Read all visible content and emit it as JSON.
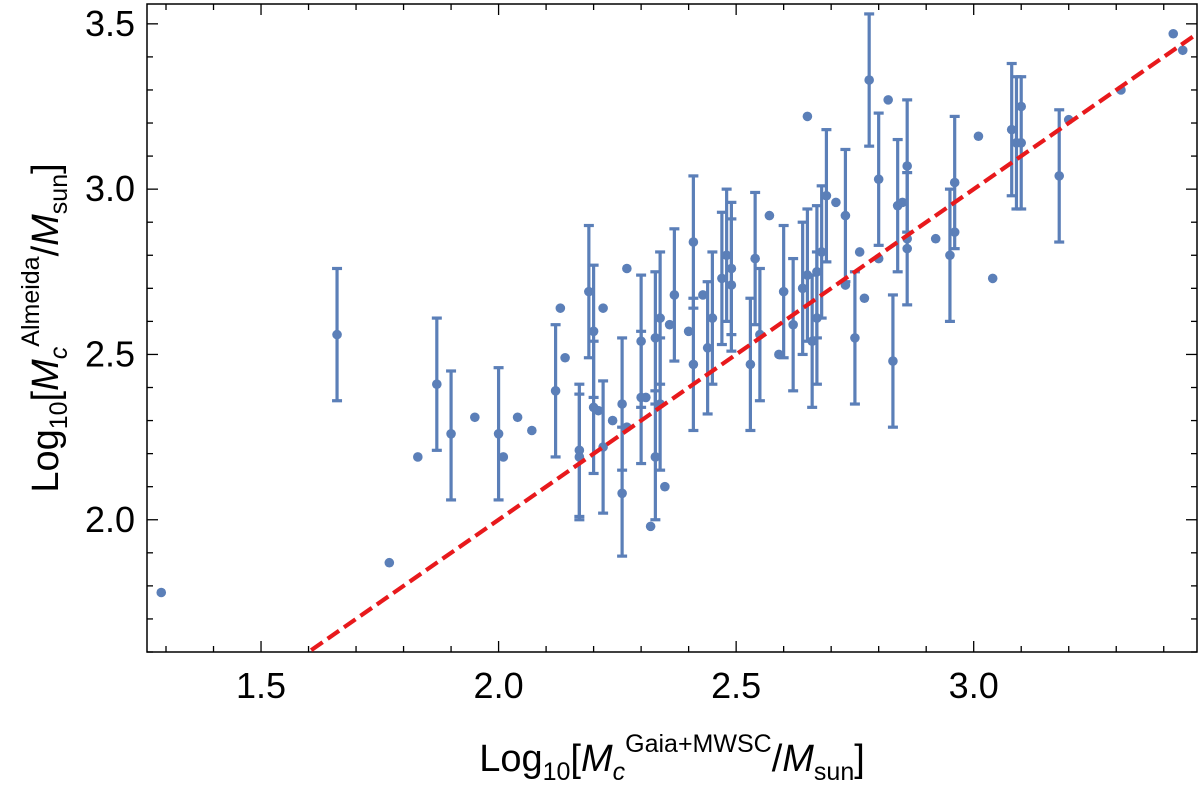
{
  "chart_data": {
    "type": "scatter",
    "title": "",
    "xlabel": {
      "prefix": "Log",
      "base": "10",
      "open": "[",
      "m1": "M",
      "m1_sub": "c",
      "m1_sup": "Gaia+MWSC",
      "slash": "/",
      "m2": "M",
      "m2_sub": "sun",
      "close": "]"
    },
    "ylabel": {
      "prefix": "Log",
      "base": "10",
      "open": "[",
      "m1": "M",
      "m1_sub": "c",
      "m1_sup": "Almeida",
      "slash": "/",
      "m2": "M",
      "m2_sub": "sun",
      "close": "]"
    },
    "xlim": [
      1.26,
      3.47
    ],
    "ylim": [
      1.6,
      3.56
    ],
    "x_ticks": [
      "1.5",
      "2.0",
      "2.5",
      "3.0"
    ],
    "y_ticks": [
      "2.0",
      "2.5",
      "3.0",
      "3.5"
    ],
    "x_tick_values": [
      1.5,
      2.0,
      2.5,
      3.0
    ],
    "y_tick_values": [
      2.0,
      2.5,
      3.0,
      3.5
    ],
    "x_minor_step": 0.1,
    "y_minor_step": 0.1,
    "grid": false,
    "point_color": "#5b7fb8",
    "line_color": "#e8191c",
    "reference_line": {
      "slope": 1,
      "intercept": 0,
      "style": "dashed"
    },
    "points": [
      {
        "x": 1.29,
        "y": 1.78
      },
      {
        "x": 1.66,
        "y": 2.56,
        "lo": 2.36,
        "hi": 2.76
      },
      {
        "x": 1.77,
        "y": 1.87
      },
      {
        "x": 1.83,
        "y": 2.19
      },
      {
        "x": 1.87,
        "y": 2.41,
        "lo": 2.21,
        "hi": 2.61
      },
      {
        "x": 1.9,
        "y": 2.26,
        "lo": 2.06,
        "hi": 2.45
      },
      {
        "x": 1.95,
        "y": 2.31
      },
      {
        "x": 2.0,
        "y": 2.26,
        "lo": 2.06,
        "hi": 2.46
      },
      {
        "x": 2.01,
        "y": 2.19
      },
      {
        "x": 2.04,
        "y": 2.31
      },
      {
        "x": 2.07,
        "y": 2.27
      },
      {
        "x": 2.12,
        "y": 2.39,
        "lo": 2.19,
        "hi": 2.59
      },
      {
        "x": 2.13,
        "y": 2.64
      },
      {
        "x": 2.14,
        "y": 2.49
      },
      {
        "x": 2.17,
        "y": 2.21,
        "lo": 2.01,
        "hi": 2.41
      },
      {
        "x": 2.17,
        "y": 2.19,
        "lo": 2.0,
        "hi": 2.38
      },
      {
        "x": 2.19,
        "y": 2.69,
        "lo": 2.49,
        "hi": 2.89
      },
      {
        "x": 2.2,
        "y": 2.57,
        "lo": 2.37,
        "hi": 2.77
      },
      {
        "x": 2.2,
        "y": 2.34,
        "lo": 2.14,
        "hi": 2.54
      },
      {
        "x": 2.21,
        "y": 2.33
      },
      {
        "x": 2.22,
        "y": 2.64
      },
      {
        "x": 2.22,
        "y": 2.22,
        "lo": 2.02,
        "hi": 2.42
      },
      {
        "x": 2.24,
        "y": 2.3
      },
      {
        "x": 2.26,
        "y": 2.08,
        "lo": 1.89,
        "hi": 2.28
      },
      {
        "x": 2.26,
        "y": 2.35,
        "lo": 2.15,
        "hi": 2.55
      },
      {
        "x": 2.27,
        "y": 2.76
      },
      {
        "x": 2.27,
        "y": 2.28
      },
      {
        "x": 2.3,
        "y": 2.54,
        "lo": 2.34,
        "hi": 2.74
      },
      {
        "x": 2.3,
        "y": 2.37,
        "lo": 2.17,
        "hi": 2.57
      },
      {
        "x": 2.31,
        "y": 2.37
      },
      {
        "x": 2.32,
        "y": 1.98
      },
      {
        "x": 2.33,
        "y": 2.55,
        "lo": 2.35,
        "hi": 2.75
      },
      {
        "x": 2.33,
        "y": 2.19,
        "lo": 2.0,
        "hi": 2.39
      },
      {
        "x": 2.34,
        "y": 2.35,
        "lo": 2.15,
        "hi": 2.55
      },
      {
        "x": 2.34,
        "y": 2.61,
        "lo": 2.41,
        "hi": 2.81
      },
      {
        "x": 2.35,
        "y": 2.1
      },
      {
        "x": 2.36,
        "y": 2.59
      },
      {
        "x": 2.37,
        "y": 2.68,
        "lo": 2.48,
        "hi": 2.88
      },
      {
        "x": 2.4,
        "y": 2.57
      },
      {
        "x": 2.41,
        "y": 2.84,
        "lo": 2.64,
        "hi": 3.04
      },
      {
        "x": 2.41,
        "y": 2.47,
        "lo": 2.27,
        "hi": 2.67
      },
      {
        "x": 2.43,
        "y": 2.68
      },
      {
        "x": 2.44,
        "y": 2.52,
        "lo": 2.32,
        "hi": 2.72
      },
      {
        "x": 2.45,
        "y": 2.61,
        "lo": 2.41,
        "hi": 2.81
      },
      {
        "x": 2.47,
        "y": 2.73,
        "lo": 2.53,
        "hi": 2.93
      },
      {
        "x": 2.48,
        "y": 2.8,
        "lo": 2.6,
        "hi": 3.0
      },
      {
        "x": 2.49,
        "y": 2.71,
        "lo": 2.51,
        "hi": 2.91
      },
      {
        "x": 2.49,
        "y": 2.76,
        "lo": 2.56,
        "hi": 2.96
      },
      {
        "x": 2.53,
        "y": 2.47,
        "lo": 2.27,
        "hi": 2.67
      },
      {
        "x": 2.54,
        "y": 2.79,
        "lo": 2.59,
        "hi": 2.99
      },
      {
        "x": 2.55,
        "y": 2.56,
        "lo": 2.36,
        "hi": 2.76
      },
      {
        "x": 2.57,
        "y": 2.92
      },
      {
        "x": 2.59,
        "y": 2.5
      },
      {
        "x": 2.6,
        "y": 2.69,
        "lo": 2.49,
        "hi": 2.89
      },
      {
        "x": 2.62,
        "y": 2.59,
        "lo": 2.39,
        "hi": 2.79
      },
      {
        "x": 2.64,
        "y": 2.7,
        "lo": 2.5,
        "hi": 2.9
      },
      {
        "x": 2.65,
        "y": 2.74,
        "lo": 2.54,
        "hi": 2.94
      },
      {
        "x": 2.65,
        "y": 3.22
      },
      {
        "x": 2.66,
        "y": 2.54,
        "lo": 2.34,
        "hi": 2.74
      },
      {
        "x": 2.67,
        "y": 2.75,
        "lo": 2.55,
        "hi": 2.95
      },
      {
        "x": 2.67,
        "y": 2.61,
        "lo": 2.41,
        "hi": 2.81
      },
      {
        "x": 2.68,
        "y": 2.81,
        "lo": 2.61,
        "hi": 3.01
      },
      {
        "x": 2.69,
        "y": 2.98,
        "lo": 2.78,
        "hi": 3.18
      },
      {
        "x": 2.71,
        "y": 2.96
      },
      {
        "x": 2.73,
        "y": 2.92,
        "lo": 2.72,
        "hi": 3.12
      },
      {
        "x": 2.73,
        "y": 2.71
      },
      {
        "x": 2.75,
        "y": 2.55,
        "lo": 2.35,
        "hi": 2.75
      },
      {
        "x": 2.76,
        "y": 2.81
      },
      {
        "x": 2.77,
        "y": 2.67
      },
      {
        "x": 2.78,
        "y": 3.33,
        "lo": 3.13,
        "hi": 3.53
      },
      {
        "x": 2.8,
        "y": 3.03,
        "lo": 2.83,
        "hi": 3.23
      },
      {
        "x": 2.8,
        "y": 2.79
      },
      {
        "x": 2.82,
        "y": 3.27
      },
      {
        "x": 2.83,
        "y": 2.48,
        "lo": 2.28,
        "hi": 2.68
      },
      {
        "x": 2.84,
        "y": 2.95,
        "lo": 2.75,
        "hi": 3.15
      },
      {
        "x": 2.85,
        "y": 2.96
      },
      {
        "x": 2.86,
        "y": 2.85,
        "lo": 2.65,
        "hi": 3.05
      },
      {
        "x": 2.86,
        "y": 3.07,
        "lo": 2.87,
        "hi": 3.27
      },
      {
        "x": 2.86,
        "y": 2.82
      },
      {
        "x": 2.92,
        "y": 2.85
      },
      {
        "x": 2.95,
        "y": 2.8,
        "lo": 2.6,
        "hi": 3.0
      },
      {
        "x": 2.96,
        "y": 2.87
      },
      {
        "x": 2.96,
        "y": 3.02,
        "lo": 2.82,
        "hi": 3.22
      },
      {
        "x": 3.01,
        "y": 3.16
      },
      {
        "x": 3.04,
        "y": 2.73
      },
      {
        "x": 3.08,
        "y": 3.18,
        "lo": 2.98,
        "hi": 3.38
      },
      {
        "x": 3.09,
        "y": 3.14,
        "lo": 2.94,
        "hi": 3.34
      },
      {
        "x": 3.1,
        "y": 3.14,
        "lo": 2.94,
        "hi": 3.34
      },
      {
        "x": 3.1,
        "y": 3.25
      },
      {
        "x": 3.18,
        "y": 3.04,
        "lo": 2.84,
        "hi": 3.24
      },
      {
        "x": 3.2,
        "y": 3.21
      },
      {
        "x": 3.31,
        "y": 3.3
      },
      {
        "x": 3.42,
        "y": 3.47
      },
      {
        "x": 3.44,
        "y": 3.42
      }
    ]
  }
}
